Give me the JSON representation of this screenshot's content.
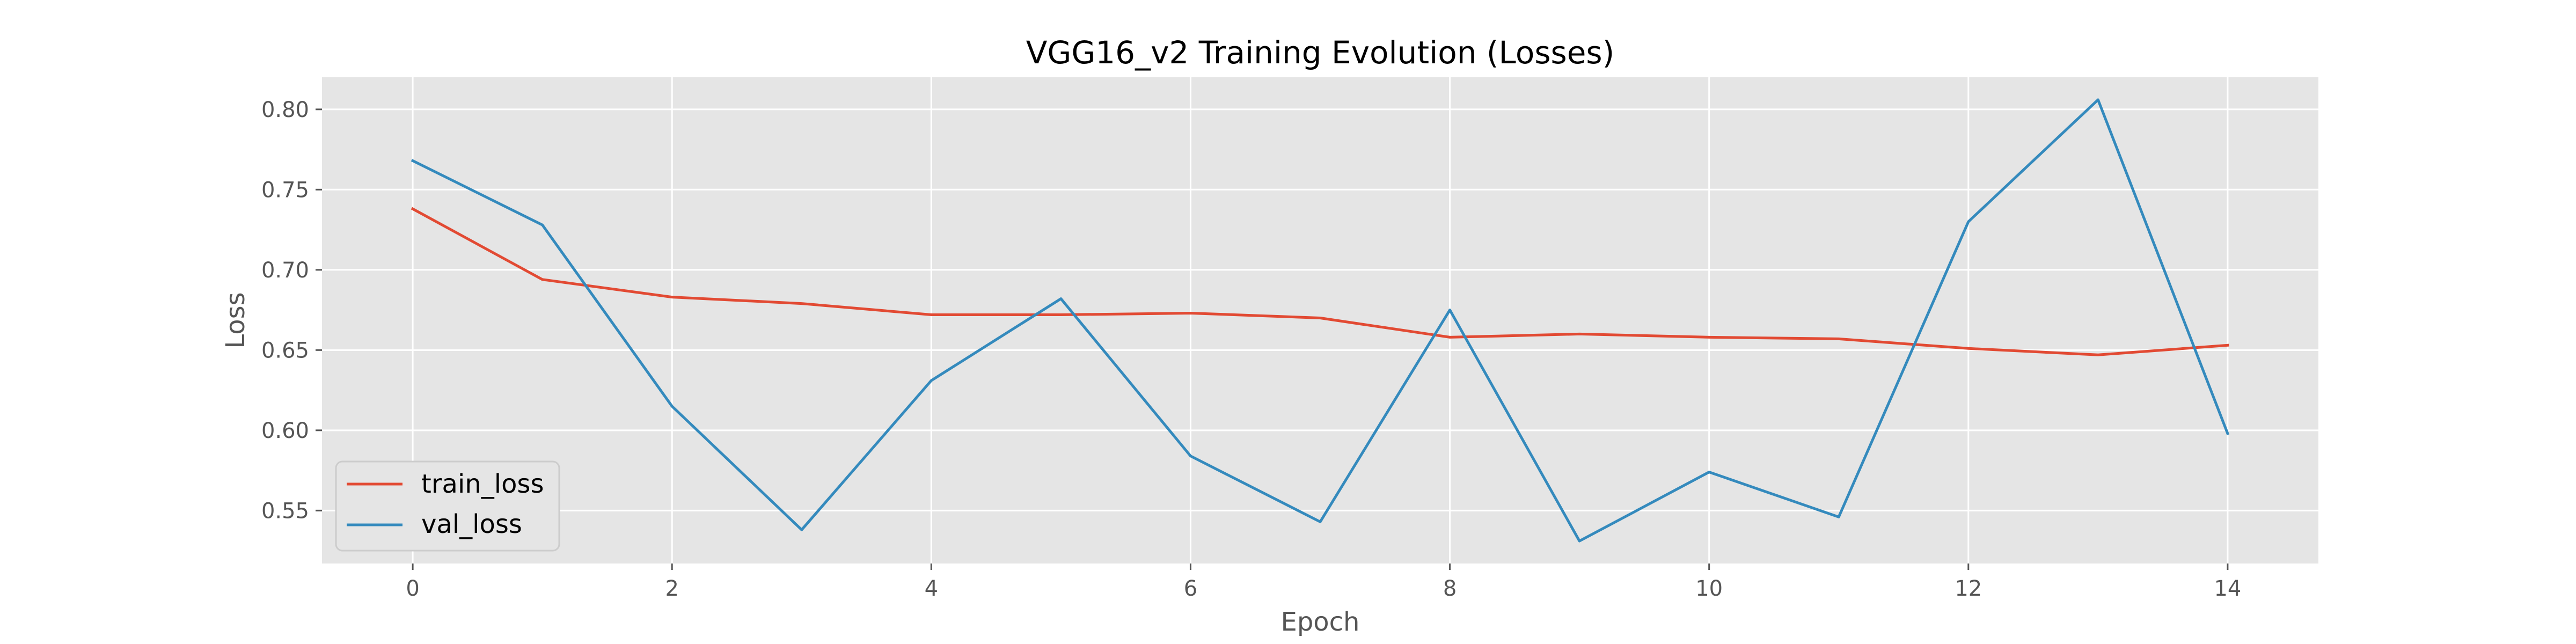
{
  "chart_data": {
    "type": "line",
    "title": "VGG16_v2 Training Evolution (Losses)",
    "xlabel": "Epoch",
    "ylabel": "Loss",
    "xlim": [
      -0.7,
      14.7
    ],
    "ylim": [
      0.517,
      0.82
    ],
    "xticks": [
      0,
      2,
      4,
      6,
      8,
      10,
      12,
      14
    ],
    "yticks": [
      0.55,
      0.6,
      0.65,
      0.7,
      0.75,
      0.8
    ],
    "ytick_labels": [
      "0.55",
      "0.60",
      "0.65",
      "0.70",
      "0.75",
      "0.80"
    ],
    "grid": true,
    "legend_position": "lower-left",
    "x": [
      0,
      1,
      2,
      3,
      4,
      5,
      6,
      7,
      8,
      9,
      10,
      11,
      12,
      13,
      14
    ],
    "series": [
      {
        "name": "train_loss",
        "color": "#E24A33",
        "values": [
          0.738,
          0.694,
          0.683,
          0.679,
          0.672,
          0.672,
          0.673,
          0.67,
          0.658,
          0.66,
          0.658,
          0.657,
          0.651,
          0.647,
          0.653
        ]
      },
      {
        "name": "val_loss",
        "color": "#348ABD",
        "values": [
          0.768,
          0.728,
          0.615,
          0.538,
          0.631,
          0.682,
          0.584,
          0.543,
          0.675,
          0.531,
          0.574,
          0.546,
          0.73,
          0.806,
          0.598
        ]
      }
    ]
  }
}
